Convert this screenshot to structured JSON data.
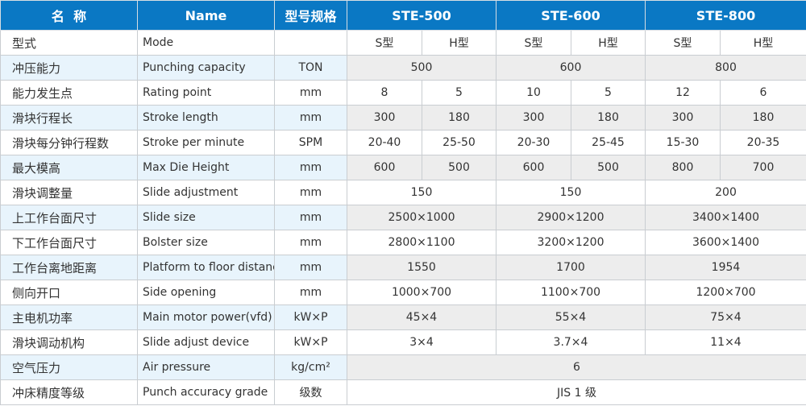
{
  "header": {
    "cn": "名  称",
    "en": "Name",
    "unit": "型号规格",
    "models": [
      "STE-500",
      "STE-600",
      "STE-800"
    ]
  },
  "colors": {
    "header_bg": "#0a78c4",
    "shade_name": "#e8f4fc",
    "shade_value": "#ededed"
  },
  "rows": [
    {
      "cn": "型式",
      "en": "Mode",
      "unit": "",
      "values": [
        "S型",
        "H型",
        "S型",
        "H型",
        "S型",
        "H型"
      ],
      "shade": false
    },
    {
      "cn": "冲压能力",
      "en": "Punching capacity",
      "unit": "TON",
      "values": [
        "500",
        "600",
        "800"
      ],
      "shade": true
    },
    {
      "cn": "能力发生点",
      "en": "Rating point",
      "unit": "mm",
      "values": [
        "8",
        "5",
        "10",
        "5",
        "12",
        "6"
      ],
      "shade": false
    },
    {
      "cn": "滑块行程长",
      "en": "Stroke length",
      "unit": "mm",
      "values": [
        "300",
        "180",
        "300",
        "180",
        "300",
        "180"
      ],
      "shade": true
    },
    {
      "cn": "滑块每分钟行程数",
      "en": "Stroke per minute",
      "unit": "SPM",
      "values": [
        "20-40",
        "25-50",
        "20-30",
        "25-45",
        "15-30",
        "20-35"
      ],
      "shade": false
    },
    {
      "cn": "最大模高",
      "en": "Max Die Height",
      "unit": "mm",
      "values": [
        "600",
        "500",
        "600",
        "500",
        "800",
        "700"
      ],
      "shade": true
    },
    {
      "cn": "滑块调整量",
      "en": "Slide adjustment",
      "unit": "mm",
      "values": [
        "150",
        "150",
        "200"
      ],
      "shade": false
    },
    {
      "cn": "上工作台面尺寸",
      "en": "Slide size",
      "unit": "mm",
      "values": [
        "2500×1000",
        "2900×1200",
        "3400×1400"
      ],
      "shade": true
    },
    {
      "cn": "下工作台面尺寸",
      "en": "Bolster size",
      "unit": "mm",
      "values": [
        "2800×1100",
        "3200×1200",
        "3600×1400"
      ],
      "shade": false
    },
    {
      "cn": "工作台离地距离",
      "en": "Platform to floor distance",
      "unit": "mm",
      "values": [
        "1550",
        "1700",
        "1954"
      ],
      "shade": true
    },
    {
      "cn": "侧向开口",
      "en": "Side opening",
      "unit": "mm",
      "values": [
        "1000×700",
        "1100×700",
        "1200×700"
      ],
      "shade": false
    },
    {
      "cn": "主电机功率",
      "en": "Main motor power(vfd)",
      "unit": "kW×P",
      "values": [
        "45×4",
        "55×4",
        "75×4"
      ],
      "shade": true
    },
    {
      "cn": "滑块调动机构",
      "en": "Slide adjust device",
      "unit": "kW×P",
      "values": [
        "3×4",
        "3.7×4",
        "11×4"
      ],
      "shade": false
    },
    {
      "cn": "空气压力",
      "en": "Air pressure",
      "unit": "kg/cm²",
      "values": [
        "6"
      ],
      "shade": true
    },
    {
      "cn": "冲床精度等级",
      "en": "Punch accuracy grade",
      "unit": "级数",
      "values": [
        "JIS 1 级"
      ],
      "shade": false
    }
  ]
}
